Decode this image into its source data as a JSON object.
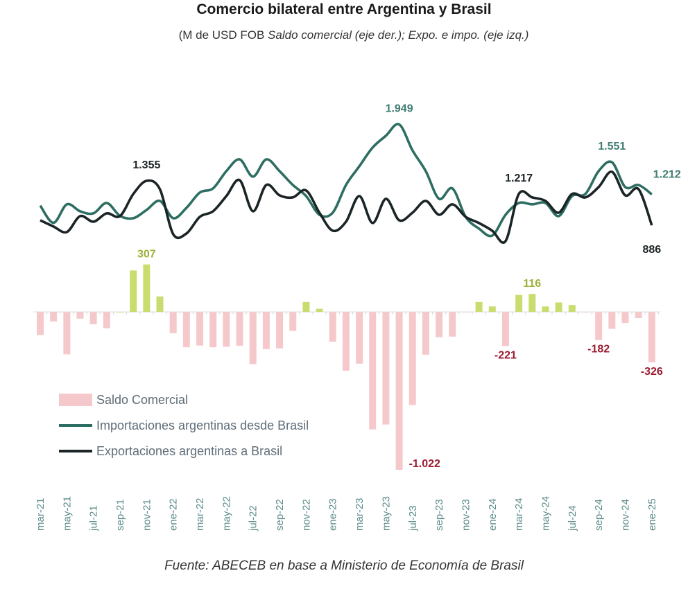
{
  "chart_data": {
    "type": "bar+line",
    "title": "Comercio bilateral entre Argentina y Brasil",
    "subtitle_plain": "(M de USD FOB ",
    "subtitle_italic": "Saldo comercial (eje der.); Expo. e impo. (eje izq.)",
    "source": "Fuente: ABECEB en base a Ministerio de Economía de Brasil",
    "categories": [
      "mar-21",
      "abr-21",
      "may-21",
      "jun-21",
      "jul-21",
      "ago-21",
      "sep-21",
      "oct-21",
      "nov-21",
      "dic-21",
      "ene-22",
      "feb-22",
      "mar-22",
      "abr-22",
      "may-22",
      "jun-22",
      "jul-22",
      "ago-22",
      "sep-22",
      "oct-22",
      "nov-22",
      "dic-22",
      "ene-23",
      "feb-23",
      "mar-23",
      "abr-23",
      "may-23",
      "jun-23",
      "jul-23",
      "ago-23",
      "sep-23",
      "oct-23",
      "nov-23",
      "dic-23",
      "ene-24",
      "feb-24",
      "mar-24",
      "abr-24",
      "may-24",
      "jun-24",
      "jul-24",
      "ago-24",
      "sep-24",
      "oct-24",
      "nov-24",
      "dic-24",
      "ene-25"
    ],
    "tick_labels": [
      "mar-21",
      "may-21",
      "jul-21",
      "sep-21",
      "nov-21",
      "ene-22",
      "mar-22",
      "may-22",
      "jul-22",
      "sep-22",
      "nov-22",
      "ene-23",
      "mar-23",
      "may-23",
      "jul-23",
      "sep-23",
      "nov-23",
      "ene-24",
      "mar-24",
      "may-24",
      "jul-24",
      "sep-24",
      "nov-24",
      "ene-25"
    ],
    "y_left_lim": [
      -1778,
      2530
    ],
    "y_right_lim": [
      -1076,
      1570
    ],
    "grid": false,
    "legend_placement": "bottom-left",
    "series": [
      {
        "name": "Saldo Comercial",
        "type": "bar",
        "axis": "right",
        "color_positive": "#c8dd6e",
        "color_negative": "#f5c9cb",
        "values": [
          -150,
          -62,
          -275,
          -44,
          -80,
          -106,
          0,
          268,
          307,
          100,
          -138,
          -229,
          -218,
          -229,
          -226,
          -219,
          -338,
          -241,
          -236,
          -123,
          64,
          20,
          -193,
          -381,
          -335,
          -761,
          -729,
          -1022,
          -603,
          -277,
          -164,
          -160,
          -3,
          64,
          35,
          -221,
          110,
          116,
          35,
          61,
          44,
          -3,
          -182,
          -110,
          -72,
          -40,
          -326
        ]
      },
      {
        "name": "Importaciones argentinas desde Brasil",
        "type": "line",
        "axis": "left",
        "color": "#2e6e62",
        "values": [
          1094,
          912,
          1107,
          1034,
          1012,
          1121,
          985,
          961,
          1048,
          1143,
          961,
          1070,
          1231,
          1275,
          1457,
          1581,
          1399,
          1581,
          1457,
          1311,
          1194,
          997,
          1019,
          1311,
          1508,
          1705,
          1830,
          1949,
          1676,
          1457,
          1165,
          1275,
          975,
          851,
          778,
          997,
          1121,
          1107,
          1121,
          983,
          1194,
          1216,
          1457,
          1551,
          1289,
          1311,
          1212
        ]
      },
      {
        "name": "Exportaciones argentinas a Brasil",
        "type": "line",
        "axis": "left",
        "color": "#1b2426",
        "values": [
          939,
          873,
          815,
          983,
          924,
          1012,
          983,
          1216,
          1355,
          1267,
          793,
          800,
          975,
          1034,
          1194,
          1362,
          1034,
          1311,
          1202,
          1180,
          1253,
          1019,
          829,
          924,
          1194,
          910,
          1165,
          939,
          1019,
          1143,
          997,
          1107,
          975,
          910,
          829,
          720,
          1217,
          1180,
          1143,
          1019,
          1216,
          1180,
          1289,
          1450,
          1202,
          1267,
          886
        ]
      }
    ],
    "annotations": [
      {
        "series": 2,
        "category": "nov-21",
        "text": "1.355",
        "color": "#1b2426"
      },
      {
        "series": 1,
        "category": "jun-23",
        "text": "1.949",
        "color": "#3f7d73"
      },
      {
        "series": 2,
        "category": "mar-24",
        "text": "1.217",
        "color": "#1b2426"
      },
      {
        "series": 1,
        "category": "oct-24",
        "text": "1.551",
        "color": "#3f7d73"
      },
      {
        "series": 1,
        "category": "ene-25",
        "text": "1.212",
        "color": "#3f7d73"
      },
      {
        "series": 2,
        "category": "ene-25",
        "text": "886",
        "color": "#1b2426"
      },
      {
        "series": 0,
        "category": "nov-21",
        "text": "307",
        "color": "#9bb13a"
      },
      {
        "series": 0,
        "category": "abr-24",
        "text": "116",
        "color": "#9bb13a"
      },
      {
        "series": 0,
        "category": "jun-23",
        "text": "-1.022",
        "color": "#9b1b30"
      },
      {
        "series": 0,
        "category": "feb-24",
        "text": "-221",
        "color": "#9b1b30"
      },
      {
        "series": 0,
        "category": "sep-24",
        "text": "-182",
        "color": "#9b1b30"
      },
      {
        "series": 0,
        "category": "ene-25",
        "text": "-326",
        "color": "#9b1b30"
      }
    ],
    "axis_text_color": "#5b8c8a"
  }
}
